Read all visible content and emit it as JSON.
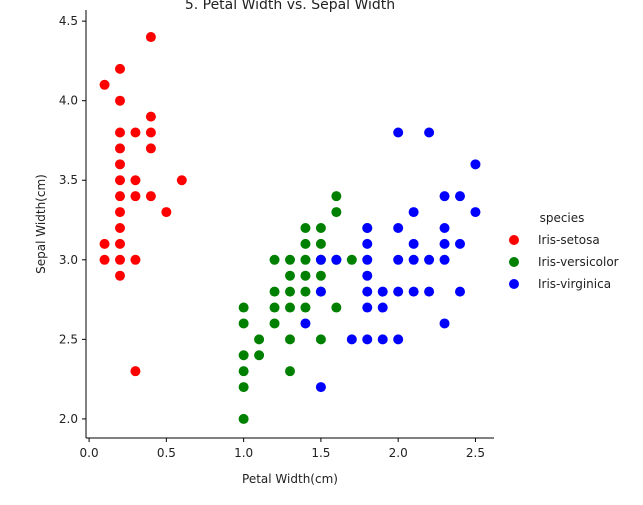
{
  "chart_data": {
    "type": "scatter",
    "title": "5. Petal Width vs. Sepal Width",
    "xlabel": "Petal Width(cm)",
    "ylabel": "Sepal Width(cm)",
    "xlim": [
      -0.02,
      2.62
    ],
    "ylim": [
      1.88,
      4.57
    ],
    "xticks": [
      0.0,
      0.5,
      1.0,
      1.5,
      2.0,
      2.5
    ],
    "xtick_labels": [
      "0.0",
      "0.5",
      "1.0",
      "1.5",
      "2.0",
      "2.5"
    ],
    "yticks": [
      2.0,
      2.5,
      3.0,
      3.5,
      4.0,
      4.5
    ],
    "ytick_labels": [
      "2.0",
      "2.5",
      "3.0",
      "3.5",
      "4.0",
      "4.5"
    ],
    "grid": false,
    "legend": {
      "title": "species",
      "placement": "right"
    },
    "series": [
      {
        "name": "Iris-setosa",
        "color": "#ff0000",
        "points": [
          [
            0.1,
            4.1
          ],
          [
            0.1,
            3.1
          ],
          [
            0.1,
            3.0
          ],
          [
            0.2,
            4.2
          ],
          [
            0.2,
            4.0
          ],
          [
            0.2,
            3.8
          ],
          [
            0.2,
            3.7
          ],
          [
            0.2,
            3.6
          ],
          [
            0.2,
            3.5
          ],
          [
            0.2,
            3.4
          ],
          [
            0.2,
            3.3
          ],
          [
            0.2,
            3.2
          ],
          [
            0.2,
            3.1
          ],
          [
            0.2,
            3.0
          ],
          [
            0.2,
            2.9
          ],
          [
            0.3,
            3.8
          ],
          [
            0.3,
            3.5
          ],
          [
            0.3,
            3.4
          ],
          [
            0.3,
            3.0
          ],
          [
            0.3,
            2.3
          ],
          [
            0.4,
            4.4
          ],
          [
            0.4,
            3.9
          ],
          [
            0.4,
            3.8
          ],
          [
            0.4,
            3.7
          ],
          [
            0.4,
            3.4
          ],
          [
            0.5,
            3.3
          ],
          [
            0.6,
            3.5
          ]
        ]
      },
      {
        "name": "Iris-versicolor",
        "color": "#008000",
        "points": [
          [
            1.0,
            2.7
          ],
          [
            1.0,
            2.6
          ],
          [
            1.0,
            2.4
          ],
          [
            1.0,
            2.3
          ],
          [
            1.0,
            2.2
          ],
          [
            1.0,
            2.0
          ],
          [
            1.1,
            2.5
          ],
          [
            1.1,
            2.4
          ],
          [
            1.2,
            3.0
          ],
          [
            1.2,
            2.8
          ],
          [
            1.2,
            2.7
          ],
          [
            1.2,
            2.6
          ],
          [
            1.3,
            3.0
          ],
          [
            1.3,
            2.9
          ],
          [
            1.3,
            2.8
          ],
          [
            1.3,
            2.7
          ],
          [
            1.3,
            2.5
          ],
          [
            1.3,
            2.3
          ],
          [
            1.4,
            3.2
          ],
          [
            1.4,
            3.1
          ],
          [
            1.4,
            3.0
          ],
          [
            1.4,
            2.9
          ],
          [
            1.4,
            2.8
          ],
          [
            1.4,
            2.7
          ],
          [
            1.5,
            3.2
          ],
          [
            1.5,
            3.1
          ],
          [
            1.5,
            3.0
          ],
          [
            1.5,
            2.9
          ],
          [
            1.5,
            2.8
          ],
          [
            1.5,
            2.5
          ],
          [
            1.6,
            3.4
          ],
          [
            1.6,
            3.3
          ],
          [
            1.6,
            3.0
          ],
          [
            1.6,
            2.7
          ],
          [
            1.7,
            3.0
          ],
          [
            1.8,
            3.2
          ]
        ]
      },
      {
        "name": "Iris-virginica",
        "color": "#0000ff",
        "points": [
          [
            1.4,
            2.6
          ],
          [
            1.5,
            3.0
          ],
          [
            1.5,
            2.8
          ],
          [
            1.5,
            2.2
          ],
          [
            1.6,
            3.0
          ],
          [
            1.7,
            2.5
          ],
          [
            1.8,
            3.2
          ],
          [
            1.8,
            3.1
          ],
          [
            1.8,
            3.0
          ],
          [
            1.8,
            2.9
          ],
          [
            1.8,
            2.8
          ],
          [
            1.8,
            2.7
          ],
          [
            1.8,
            2.5
          ],
          [
            1.9,
            2.8
          ],
          [
            1.9,
            2.7
          ],
          [
            1.9,
            2.5
          ],
          [
            2.0,
            3.8
          ],
          [
            2.0,
            3.2
          ],
          [
            2.0,
            3.0
          ],
          [
            2.0,
            2.8
          ],
          [
            2.0,
            2.5
          ],
          [
            2.1,
            3.3
          ],
          [
            2.1,
            3.1
          ],
          [
            2.1,
            3.0
          ],
          [
            2.1,
            2.8
          ],
          [
            2.2,
            3.8
          ],
          [
            2.2,
            3.0
          ],
          [
            2.2,
            2.8
          ],
          [
            2.3,
            3.4
          ],
          [
            2.3,
            3.2
          ],
          [
            2.3,
            3.1
          ],
          [
            2.3,
            3.0
          ],
          [
            2.3,
            2.6
          ],
          [
            2.4,
            3.4
          ],
          [
            2.4,
            3.1
          ],
          [
            2.4,
            2.8
          ],
          [
            2.5,
            3.6
          ],
          [
            2.5,
            3.3
          ]
        ]
      }
    ]
  }
}
